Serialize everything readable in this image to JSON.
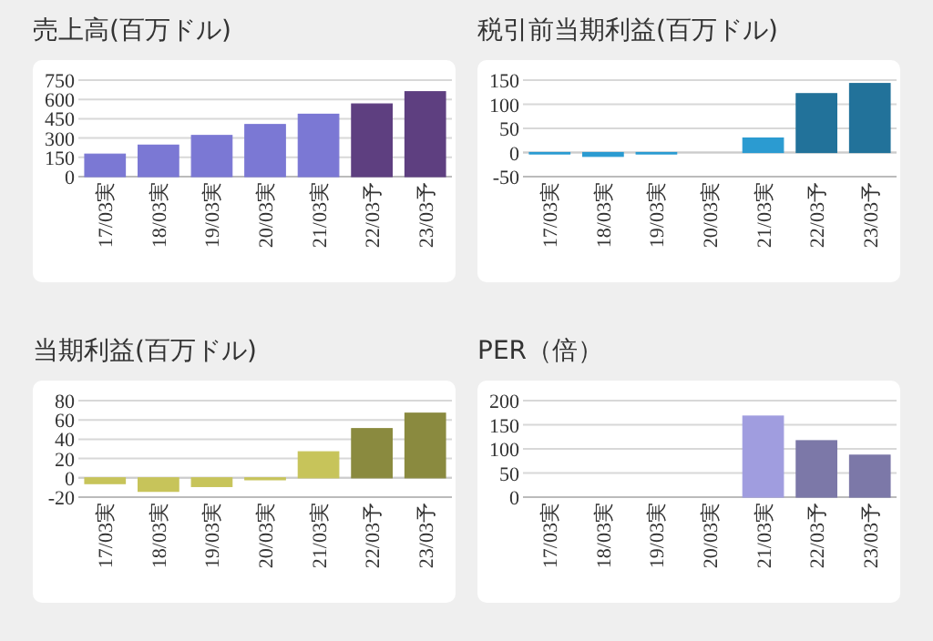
{
  "chart_data": [
    {
      "type": "bar",
      "title": "売上高(百万ドル)",
      "categories": [
        "17/03実",
        "18/03実",
        "19/03実",
        "20/03実",
        "21/03実",
        "22/03予",
        "23/03予"
      ],
      "values": [
        175,
        245,
        320,
        405,
        485,
        565,
        660
      ],
      "colors": [
        "#7b78d4",
        "#7b78d4",
        "#7b78d4",
        "#7b78d4",
        "#7b78d4",
        "#5e3f80",
        "#5e3f80"
      ],
      "ylim": [
        0,
        750
      ],
      "yticks": [
        0,
        150,
        300,
        450,
        600,
        750
      ],
      "grid": "y"
    },
    {
      "type": "bar",
      "title": "税引前当期利益(百万ドル)",
      "categories": [
        "17/03実",
        "18/03実",
        "19/03実",
        "20/03実",
        "21/03実",
        "22/03予",
        "23/03予"
      ],
      "values": [
        -3,
        -8,
        -3,
        null,
        30,
        122,
        143
      ],
      "colors": [
        "#2b9bd1",
        "#2b9bd1",
        "#2b9bd1",
        null,
        "#2b9bd1",
        "#22729a",
        "#22729a"
      ],
      "ylim": [
        -50,
        150
      ],
      "yticks": [
        -50,
        0,
        50,
        100,
        150
      ],
      "grid": "y"
    },
    {
      "type": "bar",
      "title": "当期利益(百万ドル)",
      "categories": [
        "17/03実",
        "18/03実",
        "19/03実",
        "20/03実",
        "21/03実",
        "22/03予",
        "23/03予"
      ],
      "values": [
        -6,
        -14,
        -9,
        -2,
        27,
        51,
        67
      ],
      "colors": [
        "#c7c45a",
        "#c7c45a",
        "#c7c45a",
        "#c7c45a",
        "#c7c45a",
        "#8a8a3f",
        "#8a8a3f"
      ],
      "ylim": [
        -20,
        80
      ],
      "yticks": [
        -20,
        0,
        20,
        40,
        60,
        80
      ],
      "grid": "y"
    },
    {
      "type": "bar",
      "title": "PER（倍）",
      "categories": [
        "17/03実",
        "18/03実",
        "19/03実",
        "20/03実",
        "21/03実",
        "22/03予",
        "23/03予"
      ],
      "values": [
        null,
        null,
        null,
        null,
        168,
        117,
        87
      ],
      "colors": [
        null,
        null,
        null,
        null,
        "#a09ddf",
        "#7c78a8",
        "#7c78a8"
      ],
      "ylim": [
        0,
        200
      ],
      "yticks": [
        0,
        50,
        100,
        150,
        200
      ],
      "grid": "y"
    }
  ]
}
